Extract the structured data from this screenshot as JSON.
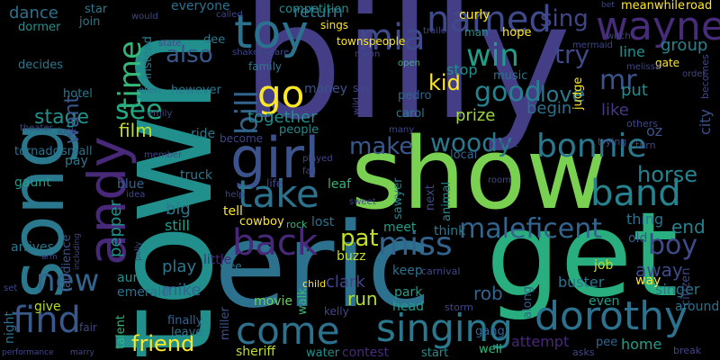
{
  "words": [
    {
      "text": "billy",
      "color": "#433e85"
    },
    {
      "text": "town",
      "color": "#21908d"
    },
    {
      "text": "show",
      "color": "#7ad151"
    },
    {
      "text": "eric",
      "color": "#2c728e"
    },
    {
      "text": "get",
      "color": "#29af7f"
    },
    {
      "text": "song",
      "color": "#2a788e"
    },
    {
      "text": "girl",
      "color": "#3b528b"
    },
    {
      "text": "toy",
      "color": "#2c728e"
    },
    {
      "text": "andy",
      "color": "#482878"
    },
    {
      "text": "named",
      "color": "#3e4a89"
    },
    {
      "text": "wayne",
      "color": "#472c7a"
    },
    {
      "text": "dorothy",
      "color": "#2c728e"
    },
    {
      "text": "bonnie",
      "color": "#2a788e"
    },
    {
      "text": "band",
      "color": "#26828e"
    },
    {
      "text": "come",
      "color": "#2c728e"
    },
    {
      "text": "back",
      "color": "#482878"
    },
    {
      "text": "take",
      "color": "#2c728e"
    },
    {
      "text": "singing",
      "color": "#2a788e"
    },
    {
      "text": "find",
      "color": "#38598c"
    },
    {
      "text": "mia",
      "color": "#3e4a89"
    },
    {
      "text": "miss",
      "color": "#32648e"
    },
    {
      "text": "maleficent",
      "color": "#32648e"
    },
    {
      "text": "boy",
      "color": "#3e4a89"
    },
    {
      "text": "go",
      "color": "#fde725"
    },
    {
      "text": "bill",
      "color": "#32648e"
    },
    {
      "text": "time",
      "color": "#35b779"
    },
    {
      "text": "see",
      "color": "#22a884"
    },
    {
      "text": "new",
      "color": "#32648e"
    },
    {
      "text": "win",
      "color": "#1f9e89"
    },
    {
      "text": "try",
      "color": "#3e4a89"
    },
    {
      "text": "mr",
      "color": "#3b528b"
    },
    {
      "text": "good",
      "color": "#26828e"
    },
    {
      "text": "love",
      "color": "#2a788e"
    },
    {
      "text": "make",
      "color": "#38598c"
    },
    {
      "text": "woody",
      "color": "#2a788e"
    },
    {
      "text": "horse",
      "color": "#26828e"
    },
    {
      "text": "pat",
      "color": "#c2df23"
    },
    {
      "text": "friend",
      "color": "#fde725"
    },
    {
      "text": "also",
      "color": "#38598c"
    },
    {
      "text": "sing",
      "color": "#404688"
    },
    {
      "text": "kid",
      "color": "#fde725"
    },
    {
      "text": "stage",
      "color": "#21908d"
    },
    {
      "text": "want",
      "color": "#38598c"
    },
    {
      "text": "film",
      "color": "#bddf26"
    },
    {
      "text": "rob",
      "color": "#32648e"
    },
    {
      "text": "run",
      "color": "#b5de2b"
    },
    {
      "text": "away",
      "color": "#3e4a89"
    },
    {
      "text": "end",
      "color": "#26828e"
    },
    {
      "text": "mike",
      "color": "#32648e"
    },
    {
      "text": "play",
      "color": "#2a788e"
    },
    {
      "text": "big",
      "color": "#2a788e"
    },
    {
      "text": "prize",
      "color": "#9fda3a"
    },
    {
      "text": "begin",
      "color": "#2c728e"
    },
    {
      "text": "put",
      "color": "#238a8d"
    },
    {
      "text": "group",
      "color": "#26828e"
    },
    {
      "text": "return",
      "color": "#2c728e"
    },
    {
      "text": "dance",
      "color": "#2c728e"
    },
    {
      "text": "together",
      "color": "#21908d"
    },
    {
      "text": "singer",
      "color": "#2a788e"
    },
    {
      "text": "attempt",
      "color": "#482878"
    },
    {
      "text": "home",
      "color": "#1f9e89"
    },
    {
      "text": "stop",
      "color": "#21908d"
    },
    {
      "text": "clark",
      "color": "#404688"
    },
    {
      "text": "line",
      "color": "#21908d"
    },
    {
      "text": "like",
      "color": "#443983"
    },
    {
      "text": "thing",
      "color": "#2c728e"
    },
    {
      "text": "still",
      "color": "#1f9e89"
    },
    {
      "text": "aunt",
      "color": "#21908d"
    },
    {
      "text": "emerald",
      "color": "#2c728e"
    },
    {
      "text": "movie",
      "color": "#6ccd5a"
    },
    {
      "text": "head",
      "color": "#1f9e89"
    },
    {
      "text": "park",
      "color": "#1f9e89"
    },
    {
      "text": "keep",
      "color": "#2c728e"
    },
    {
      "text": "sheriff",
      "color": "#bddf26"
    },
    {
      "text": "contest",
      "color": "#482878"
    },
    {
      "text": "money",
      "color": "#3b528b"
    },
    {
      "text": "oz",
      "color": "#3b528b"
    },
    {
      "text": "city",
      "color": "#3b528b"
    },
    {
      "text": "buster",
      "color": "#2c728e"
    },
    {
      "text": "job",
      "color": "#bddf26"
    },
    {
      "text": "way",
      "color": "#fde725"
    },
    {
      "text": "even",
      "color": "#1f9e89"
    },
    {
      "text": "old",
      "color": "#38598c"
    },
    {
      "text": "pepper",
      "color": "#21908d"
    },
    {
      "text": "give",
      "color": "#b5de2b"
    },
    {
      "text": "night",
      "color": "#2c728e"
    },
    {
      "text": "audience",
      "color": "#3b528b"
    },
    {
      "text": "pay",
      "color": "#2a788e"
    },
    {
      "text": "talent",
      "color": "#35b779"
    },
    {
      "text": "competition",
      "color": "#21908d"
    },
    {
      "text": "everyone",
      "color": "#2c728e"
    },
    {
      "text": "man",
      "color": "#21908d"
    },
    {
      "text": "curly",
      "color": "#fde725"
    },
    {
      "text": "hotel",
      "color": "#2a788e"
    },
    {
      "text": "however",
      "color": "#2a788e"
    },
    {
      "text": "tornado",
      "color": "#2c728e"
    },
    {
      "text": "small",
      "color": "#2c728e"
    },
    {
      "text": "ride",
      "color": "#2a788e"
    },
    {
      "text": "truck",
      "color": "#2a788e"
    },
    {
      "text": "cowboy",
      "color": "#fde725"
    },
    {
      "text": "little",
      "color": "#482878"
    },
    {
      "text": "lost",
      "color": "#2c728e"
    },
    {
      "text": "meet",
      "color": "#1f9e89"
    },
    {
      "text": "think",
      "color": "#2a788e"
    },
    {
      "text": "tell",
      "color": "#fde725"
    },
    {
      "text": "buzz",
      "color": "#c2df23"
    },
    {
      "text": "leaf",
      "color": "#35b779"
    },
    {
      "text": "walk",
      "color": "#35b779"
    },
    {
      "text": "people",
      "color": "#238a8d"
    },
    {
      "text": "carol",
      "color": "#2a788e"
    },
    {
      "text": "pedro",
      "color": "#32648e"
    },
    {
      "text": "local",
      "color": "#32648e"
    },
    {
      "text": "gang",
      "color": "#32648e"
    },
    {
      "text": "start",
      "color": "#21908d"
    },
    {
      "text": "pee",
      "color": "#32648e"
    },
    {
      "text": "well",
      "color": "#35b779"
    },
    {
      "text": "water",
      "color": "#21908d"
    },
    {
      "text": "finally",
      "color": "#32648e"
    },
    {
      "text": "leave",
      "color": "#2a788e"
    },
    {
      "text": "arrives",
      "color": "#2a788e"
    },
    {
      "text": "gaunt",
      "color": "#1f9e89"
    },
    {
      "text": "blue",
      "color": "#32648e"
    },
    {
      "text": "miller",
      "color": "#3b528b"
    },
    {
      "text": "family",
      "color": "#2a788e"
    },
    {
      "text": "hope",
      "color": "#fde725"
    },
    {
      "text": "music",
      "color": "#2c728e"
    },
    {
      "text": "judge",
      "color": "#fde725"
    },
    {
      "text": "sawyer",
      "color": "#26828e"
    },
    {
      "text": "next",
      "color": "#3e4a89"
    },
    {
      "text": "animal",
      "color": "#238a8d"
    },
    {
      "text": "along",
      "color": "#32648e"
    },
    {
      "text": "citizen",
      "color": "#3e4a89"
    },
    {
      "text": "meanwhile",
      "color": "#fde725"
    },
    {
      "text": "road",
      "color": "#fde725"
    },
    {
      "text": "decides",
      "color": "#2a788e"
    },
    {
      "text": "join",
      "color": "#2a788e"
    },
    {
      "text": "star",
      "color": "#2a788e"
    },
    {
      "text": "dormer",
      "color": "#21908d"
    },
    {
      "text": "instead",
      "color": "#2a788e"
    },
    {
      "text": "dee",
      "color": "#2a788e"
    },
    {
      "text": "sings",
      "color": "#fde725"
    },
    {
      "text": "townspeople",
      "color": "#fde725"
    },
    {
      "text": "gate",
      "color": "#fde725"
    },
    {
      "text": "become",
      "color": "#404688"
    },
    {
      "text": "becomes",
      "color": "#404688"
    },
    {
      "text": "others",
      "color": "#404688"
    },
    {
      "text": "turn",
      "color": "#404688"
    },
    {
      "text": "trying",
      "color": "#404688"
    },
    {
      "text": "kelly",
      "color": "#404688"
    },
    {
      "text": "child",
      "color": "#fde725"
    },
    {
      "text": "rock",
      "color": "#35b779"
    },
    {
      "text": "around",
      "color": "#2c728e"
    },
    {
      "text": "break",
      "color": "#404688"
    },
    {
      "text": "asks",
      "color": "#404688"
    },
    {
      "text": "storm",
      "color": "#404688"
    },
    {
      "text": "carnival",
      "color": "#404688"
    },
    {
      "text": "melissa",
      "color": "#404688"
    },
    {
      "text": "witch",
      "color": "#404688"
    },
    {
      "text": "order",
      "color": "#404688"
    },
    {
      "text": "mermaid",
      "color": "#404688"
    },
    {
      "text": "trailer",
      "color": "#404688"
    },
    {
      "text": "open",
      "color": "#35b779"
    },
    {
      "text": "moon",
      "color": "#404688"
    },
    {
      "text": "shakespeare",
      "color": "#404688"
    },
    {
      "text": "state",
      "color": "#404688"
    },
    {
      "text": "would",
      "color": "#404688"
    },
    {
      "text": "called",
      "color": "#404688"
    },
    {
      "text": "ellen",
      "color": "#2c728e"
    },
    {
      "text": "emily",
      "color": "#404688"
    },
    {
      "text": "member",
      "color": "#404688"
    },
    {
      "text": "theater",
      "color": "#404688"
    },
    {
      "text": "look",
      "color": "#404688"
    },
    {
      "text": "idea",
      "color": "#404688"
    },
    {
      "text": "help",
      "color": "#404688"
    },
    {
      "text": "sweet",
      "color": "#404688"
    },
    {
      "text": "fall",
      "color": "#404688"
    },
    {
      "text": "played",
      "color": "#404688"
    },
    {
      "text": "room",
      "color": "#404688"
    },
    {
      "text": "free",
      "color": "#404688"
    },
    {
      "text": "wild",
      "color": "#404688"
    },
    {
      "text": "many",
      "color": "#404688"
    },
    {
      "text": "say",
      "color": "#404688"
    },
    {
      "text": "fair",
      "color": "#404688"
    },
    {
      "text": "wee",
      "color": "#2c728e"
    },
    {
      "text": "life",
      "color": "#404688"
    },
    {
      "text": "including",
      "color": "#404688"
    },
    {
      "text": "set",
      "color": "#404688"
    },
    {
      "text": "performance",
      "color": "#404688"
    },
    {
      "text": "marry",
      "color": "#404688"
    },
    {
      "text": "polly",
      "color": "#404688"
    },
    {
      "text": "bet",
      "color": "#404688"
    },
    {
      "text": "arm",
      "color": "#404688"
    }
  ]
}
